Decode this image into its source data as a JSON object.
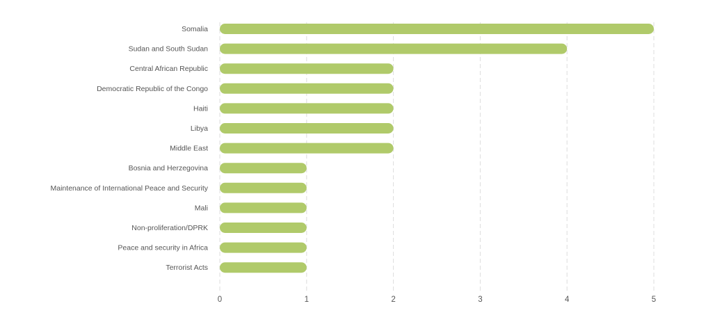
{
  "chart_data": {
    "type": "bar",
    "orientation": "horizontal",
    "categories": [
      "Somalia",
      "Sudan and South Sudan",
      "Central African Republic",
      "Democratic Republic of the Congo",
      "Haiti",
      "Libya",
      "Middle East",
      "Bosnia and Herzegovina",
      "Maintenance of International Peace and Security",
      "Mali",
      "Non-proliferation/DPRK",
      "Peace and security in Africa",
      "Terrorist Acts"
    ],
    "values": [
      5,
      4,
      2,
      2,
      2,
      2,
      2,
      1,
      1,
      1,
      1,
      1,
      1
    ],
    "xlim": [
      0,
      5
    ],
    "xticks": [
      "0",
      "1",
      "2",
      "3",
      "4",
      "5"
    ],
    "grid": "vertical-dashed",
    "legend": "none",
    "bar_color": "#b0ca6a",
    "grid_color": "#dddddd",
    "label_color": "#555555"
  }
}
